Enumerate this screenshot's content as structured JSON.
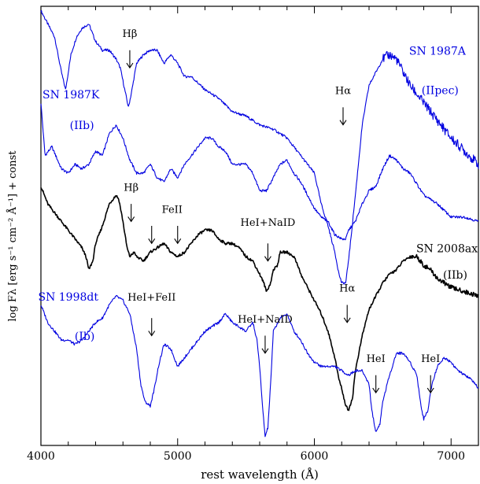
{
  "chart_data": {
    "type": "line",
    "title": "",
    "xlabel": "rest wavelength (Å)",
    "ylabel": "log Fλ [erg s⁻¹ cm⁻² Å⁻¹] + const",
    "xlim": [
      4000,
      7200
    ],
    "x_ticks": [
      4000,
      5000,
      6000,
      7000
    ],
    "ylim": [
      0,
      100
    ],
    "grid": false,
    "legend": "none",
    "colors": {
      "blue": "#0000e0",
      "black": "#000000"
    },
    "series": [
      {
        "name": "SN 1987A",
        "type_label": "(IIpec)",
        "color": "#0000e0",
        "label_pos": [
          6900,
          89
        ],
        "type_pos": [
          6920,
          80
        ],
        "x": [
          4000,
          4050,
          4100,
          4150,
          4180,
          4220,
          4260,
          4300,
          4350,
          4400,
          4450,
          4500,
          4550,
          4580,
          4620,
          4640,
          4660,
          4700,
          4750,
          4800,
          4850,
          4900,
          4950,
          5000,
          5050,
          5100,
          5200,
          5300,
          5400,
          5500,
          5600,
          5700,
          5800,
          5900,
          6000,
          6050,
          6100,
          6150,
          6180,
          6200,
          6230,
          6260,
          6300,
          6350,
          6400,
          6450,
          6500,
          6550,
          6600,
          6650,
          6700,
          6800,
          6900,
          7000,
          7100,
          7200
        ],
        "y": [
          99,
          96,
          93,
          85,
          81,
          89,
          93,
          95,
          96,
          92,
          90,
          90,
          88,
          86,
          80,
          77,
          80,
          87,
          89,
          90,
          90,
          87,
          89,
          87,
          84,
          84,
          81,
          79,
          76,
          75,
          73,
          72,
          70,
          66,
          62,
          55,
          50,
          44,
          39,
          37,
          37,
          45,
          57,
          73,
          82,
          85,
          88,
          89,
          88,
          85,
          82,
          78,
          74,
          70,
          67,
          64
        ]
      },
      {
        "name": "SN 1987K",
        "type_label": "(IIb)",
        "color": "#0000e0",
        "label_pos": [
          4220,
          79
        ],
        "type_pos": [
          4300,
          72
        ],
        "x": [
          4000,
          4030,
          4080,
          4150,
          4200,
          4250,
          4300,
          4350,
          4400,
          4450,
          4500,
          4550,
          4600,
          4650,
          4700,
          4750,
          4800,
          4850,
          4900,
          4950,
          5000,
          5050,
          5100,
          5150,
          5200,
          5250,
          5300,
          5350,
          5400,
          5450,
          5500,
          5550,
          5600,
          5650,
          5700,
          5750,
          5800,
          5850,
          5900,
          5950,
          6000,
          6050,
          6100,
          6150,
          6200,
          6230,
          6250,
          6300,
          6350,
          6400,
          6450,
          6500,
          6550,
          6600,
          6650,
          6700,
          6800,
          6900,
          7000,
          7100,
          7200
        ],
        "y": [
          78,
          66,
          68,
          63,
          62,
          64,
          63,
          64,
          67,
          66,
          71,
          73,
          70,
          65,
          62,
          62,
          64,
          61,
          60,
          63,
          61,
          64,
          66,
          68,
          70,
          70,
          68,
          67,
          64,
          64,
          64,
          62,
          58,
          58,
          61,
          64,
          65,
          62,
          60,
          57,
          54,
          52,
          51,
          48,
          47,
          47,
          49,
          51,
          55,
          58,
          59,
          63,
          66,
          65,
          63,
          62,
          57,
          55,
          52,
          52,
          51
        ]
      },
      {
        "name": "SN 2008ax",
        "type_label": "(IIb)",
        "color": "#000000",
        "label_pos": [
          6970,
          44
        ],
        "type_pos": [
          7030,
          38
        ],
        "x": [
          4000,
          4050,
          4100,
          4150,
          4200,
          4250,
          4300,
          4330,
          4350,
          4380,
          4400,
          4450,
          4500,
          4550,
          4570,
          4600,
          4630,
          4650,
          4680,
          4700,
          4750,
          4800,
          4850,
          4900,
          4950,
          5000,
          5050,
          5100,
          5150,
          5200,
          5250,
          5300,
          5350,
          5400,
          5450,
          5500,
          5550,
          5600,
          5630,
          5650,
          5680,
          5700,
          5730,
          5750,
          5800,
          5850,
          5880,
          5900,
          5950,
          6000,
          6050,
          6100,
          6150,
          6180,
          6200,
          6230,
          6250,
          6280,
          6300,
          6350,
          6400,
          6450,
          6500,
          6550,
          6600,
          6650,
          6700,
          6750,
          6800,
          6850,
          6900,
          6950,
          7000,
          7100,
          7200
        ],
        "y": [
          59,
          55,
          53,
          51,
          49,
          47,
          45,
          43,
          40,
          42,
          46,
          50,
          55,
          57,
          56,
          51,
          45,
          43,
          44,
          43,
          42,
          44,
          45,
          46,
          44,
          43,
          44,
          46,
          48,
          49,
          49,
          47,
          46,
          46,
          45,
          43,
          42,
          39,
          37,
          35,
          37,
          40,
          41,
          44,
          44,
          43,
          41,
          39,
          36,
          33,
          30,
          26,
          20,
          15,
          13,
          9,
          8,
          11,
          17,
          25,
          31,
          34,
          37,
          39,
          40,
          42,
          43,
          43,
          41,
          40,
          38,
          37,
          36,
          35,
          34
        ]
      },
      {
        "name": "SN 1998dt",
        "type_label": "(Ib)",
        "color": "#0000e0",
        "label_pos": [
          4200,
          33
        ],
        "type_pos": [
          4320,
          24
        ],
        "x": [
          4000,
          4050,
          4100,
          4150,
          4200,
          4250,
          4300,
          4350,
          4400,
          4450,
          4500,
          4550,
          4600,
          4650,
          4700,
          4730,
          4760,
          4800,
          4830,
          4860,
          4900,
          4950,
          5000,
          5050,
          5100,
          5150,
          5200,
          5250,
          5300,
          5350,
          5400,
          5450,
          5500,
          5550,
          5580,
          5600,
          5620,
          5640,
          5660,
          5680,
          5700,
          5750,
          5800,
          5850,
          5900,
          5950,
          6000,
          6050,
          6100,
          6150,
          6200,
          6250,
          6300,
          6350,
          6400,
          6420,
          6450,
          6480,
          6500,
          6550,
          6580,
          6600,
          6650,
          6700,
          6750,
          6780,
          6800,
          6830,
          6860,
          6900,
          6950,
          7000,
          7050,
          7100,
          7150,
          7200
        ],
        "y": [
          32,
          28,
          26,
          24,
          24,
          23,
          24,
          26,
          28,
          29,
          32,
          34,
          33,
          30,
          22,
          14,
          10,
          9,
          13,
          18,
          23,
          22,
          18,
          20,
          22,
          24,
          26,
          27,
          28,
          30,
          28,
          27,
          26,
          28,
          24,
          18,
          9,
          2,
          4,
          14,
          26,
          29,
          30,
          26,
          24,
          21,
          19,
          18,
          18,
          18,
          17,
          16,
          17,
          17,
          14,
          8,
          3,
          5,
          10,
          16,
          19,
          21,
          21,
          19,
          16,
          9,
          6,
          8,
          14,
          18,
          20,
          19,
          17,
          16,
          15,
          13
        ]
      }
    ],
    "annotations": [
      {
        "text": "Hβ",
        "x": 4650,
        "y": 93,
        "arrow_top": 90,
        "arrow_bottom": 86,
        "color": "#000000"
      },
      {
        "text": "Hα",
        "x": 6210,
        "y": 80,
        "arrow_top": 77,
        "arrow_bottom": 73,
        "color": "#000000"
      },
      {
        "text": "Hβ",
        "x": 4660,
        "y": 58,
        "arrow_top": 55,
        "arrow_bottom": 51,
        "color": "#000000"
      },
      {
        "text": "FeII",
        "x": 4960,
        "y": 53,
        "color": "#000000"
      },
      {
        "text": "",
        "x": 4810,
        "arrow_top": 50,
        "arrow_bottom": 46,
        "color": "#000000"
      },
      {
        "text": "",
        "x": 5000,
        "arrow_top": 50,
        "arrow_bottom": 46,
        "color": "#000000"
      },
      {
        "text": "HeI+NaID",
        "x": 5660,
        "y": 50,
        "arrow_top": 46,
        "arrow_bottom": 42,
        "color": "#000000"
      },
      {
        "text": "Hα",
        "x": 6240,
        "y": 35,
        "arrow_top": 32,
        "arrow_bottom": 28,
        "color": "#000000"
      },
      {
        "text": "HeI+FeII",
        "x": 4810,
        "y": 33,
        "arrow_top": 29,
        "arrow_bottom": 25,
        "color": "#000000"
      },
      {
        "text": "HeI+NaID",
        "x": 5640,
        "y": 28,
        "arrow_top": 25,
        "arrow_bottom": 21,
        "color": "#000000"
      },
      {
        "text": "HeI",
        "x": 6450,
        "y": 19,
        "arrow_top": 16,
        "arrow_bottom": 12,
        "color": "#000000"
      },
      {
        "text": "HeI",
        "x": 6850,
        "y": 19,
        "arrow_top": 16,
        "arrow_bottom": 12,
        "color": "#000000"
      }
    ]
  }
}
